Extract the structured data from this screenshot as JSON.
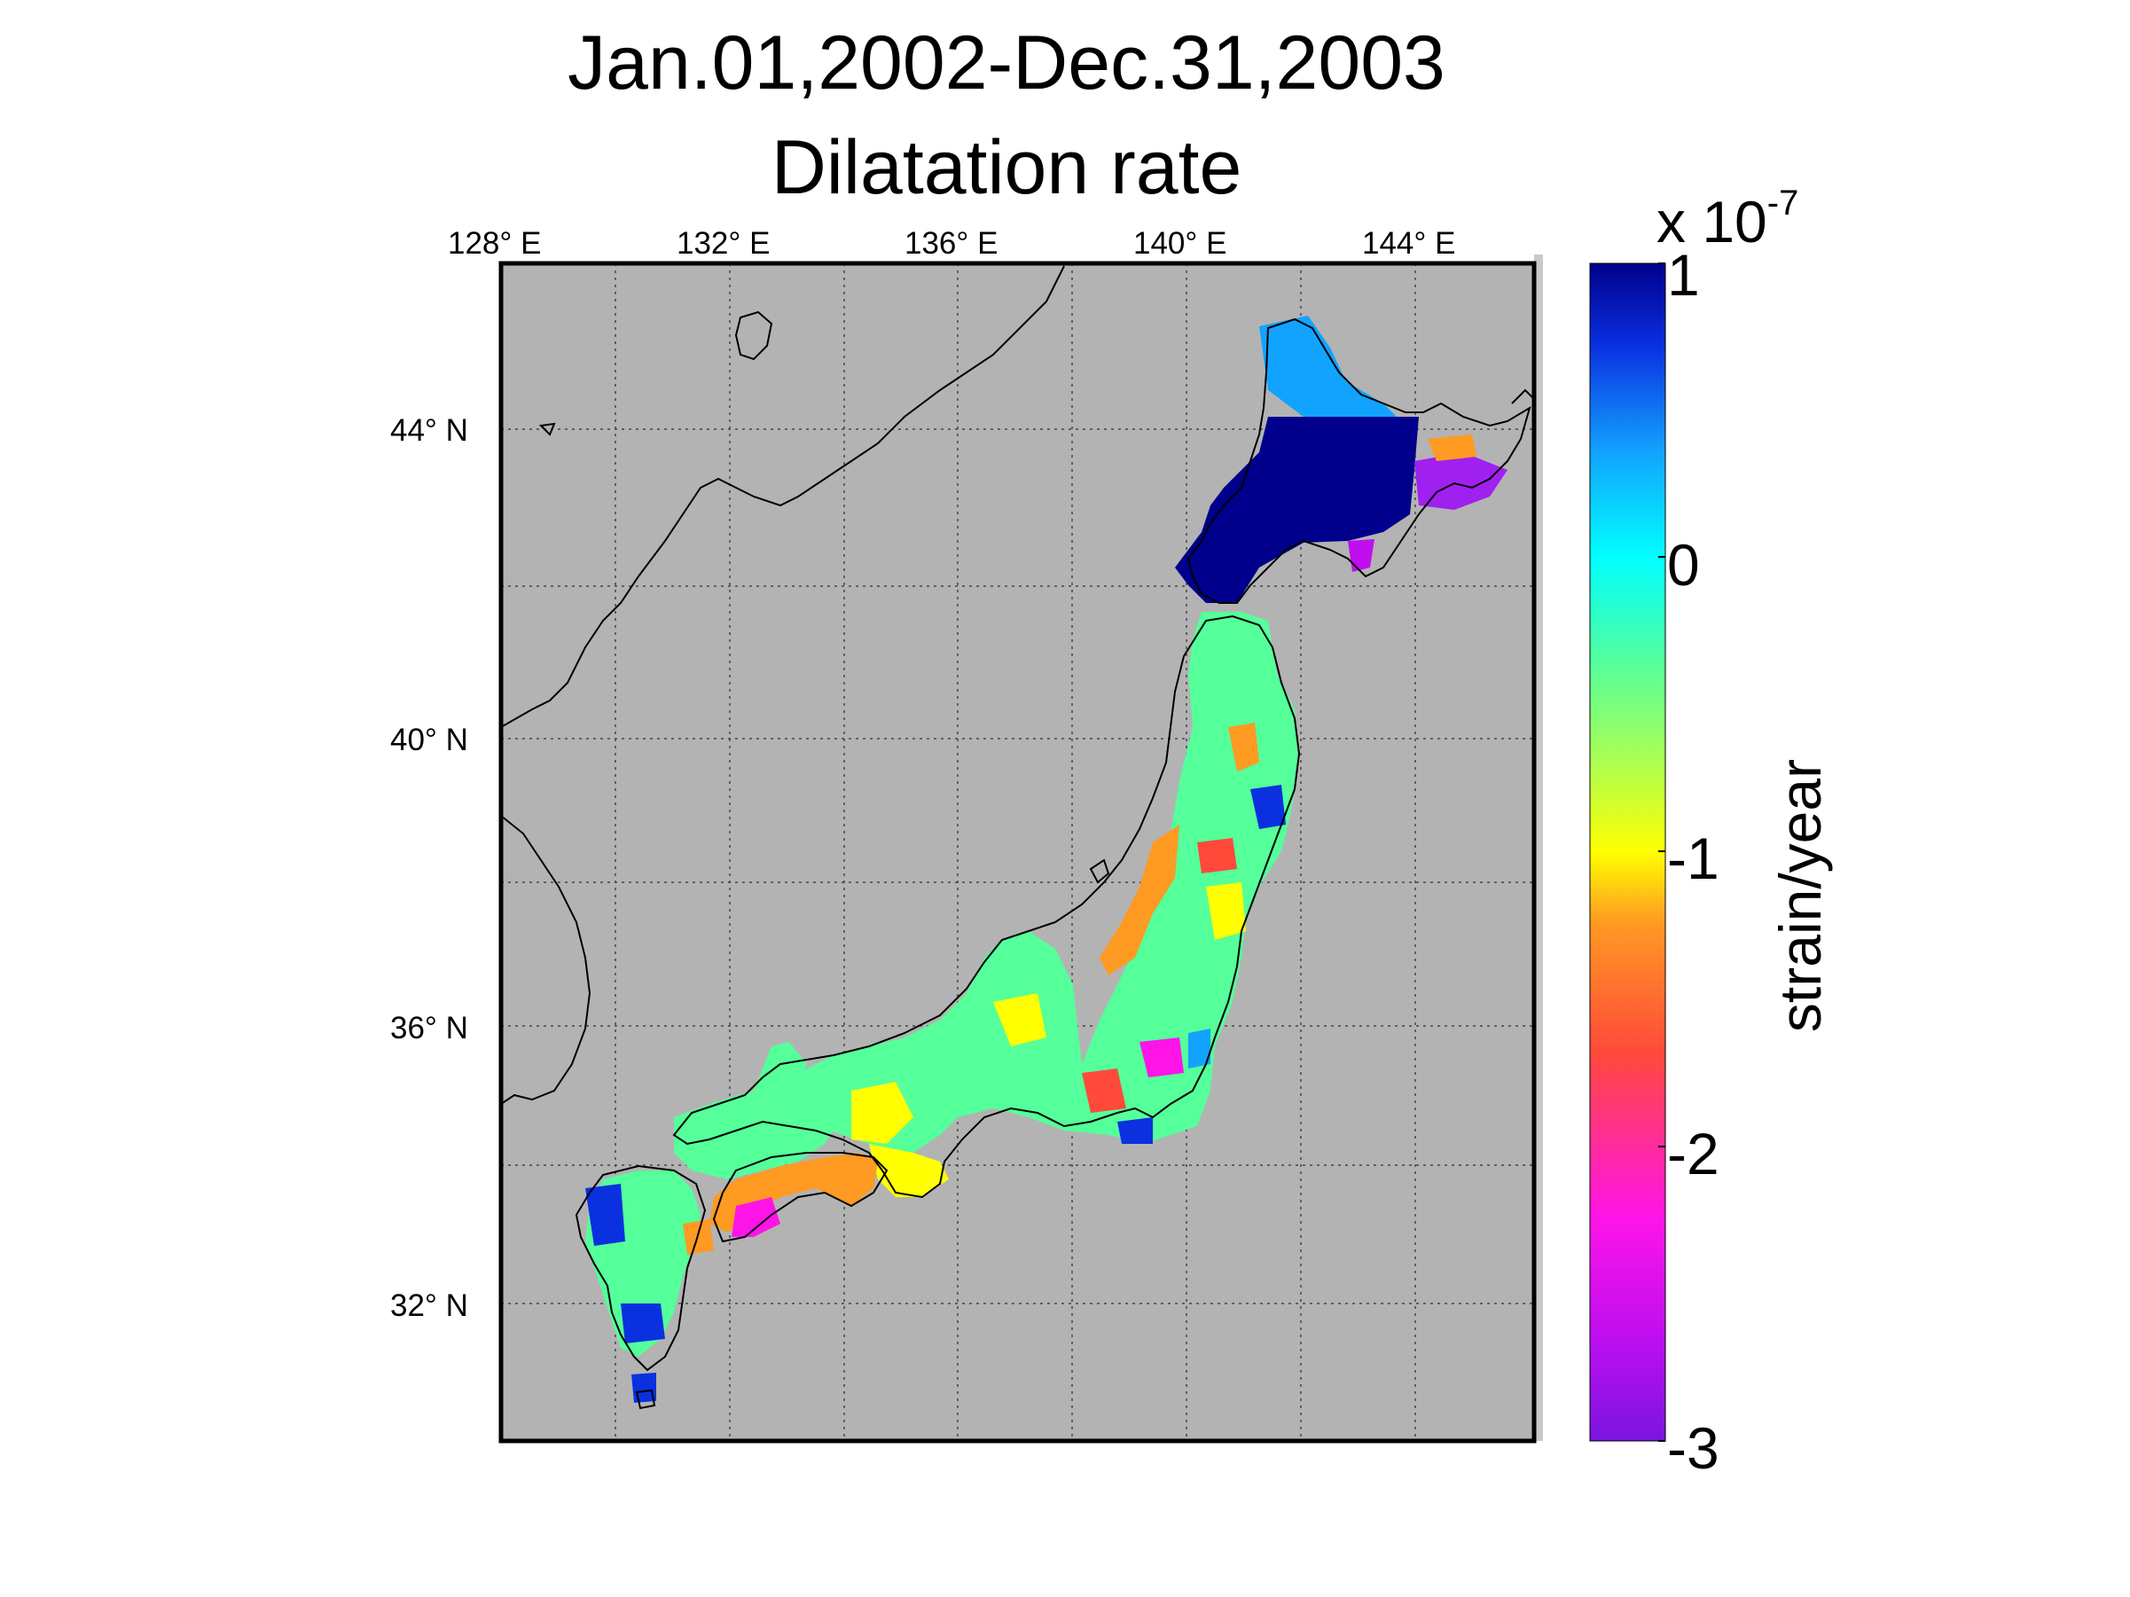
{
  "title": {
    "line1": "Jan.01,2002-Dec.31,2003",
    "line2": "Dilatation rate"
  },
  "map": {
    "lon_ticks": [
      128,
      132,
      136,
      140,
      144
    ],
    "lat_ticks": [
      44,
      40,
      36,
      32
    ],
    "lon_labels": [
      "128° E",
      "132° E",
      "136° E",
      "140° E",
      "144° E"
    ],
    "lat_labels": [
      "44° N",
      "40° N",
      "36° N",
      "32° N"
    ],
    "lon_range": [
      128,
      146
    ],
    "lat_range": [
      30,
      46
    ],
    "background_color": "#b3b3b3"
  },
  "colorbar": {
    "multiplier": "x 10",
    "exponent": "-7",
    "unit_label": "strain/year",
    "tick_values": [
      1,
      0,
      -1,
      -2,
      -3
    ],
    "tick_labels": [
      "1",
      "0",
      "-1",
      "-2",
      "-3"
    ],
    "range": [
      -3,
      1
    ],
    "colors": [
      "#7a15e0",
      "#c00ef0",
      "#ff14e8",
      "#ff4a3a",
      "#ff9a22",
      "#ffff00",
      "#a8ff55",
      "#55ff9a",
      "#00ffff",
      "#12a3ff",
      "#0a30e0",
      "#00008c"
    ]
  }
}
